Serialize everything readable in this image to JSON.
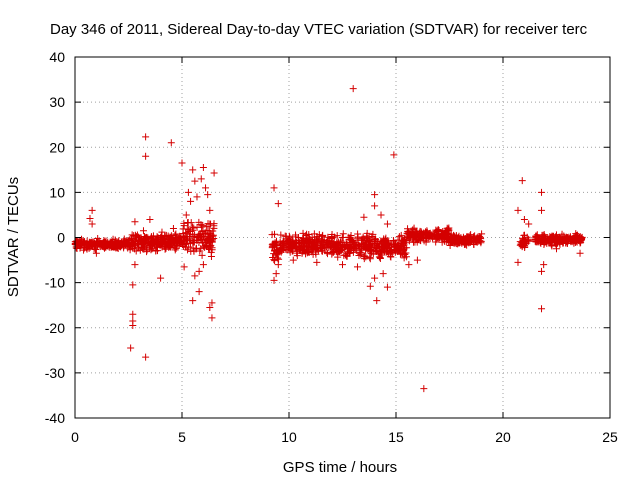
{
  "chart_data": {
    "type": "scatter",
    "title": "Day 346 of 2011, Sidereal Day-to-day VTEC variation (SDTVAR) for receiver terc",
    "xlabel": "GPS time / hours",
    "ylabel": "SDTVAR / TECUs",
    "xlim": [
      0,
      25
    ],
    "ylim": [
      -40,
      40
    ],
    "x_ticks": [
      "0",
      "5",
      "10",
      "15",
      "20",
      "25"
    ],
    "y_ticks": [
      "40",
      "30",
      "20",
      "10",
      "0",
      "-10",
      "-20",
      "-30",
      "-40"
    ],
    "x_tick_values": [
      0,
      5,
      10,
      15,
      20,
      25
    ],
    "y_tick_values": [
      40,
      30,
      20,
      10,
      0,
      -10,
      -20,
      -30,
      -40
    ],
    "grid": true,
    "marker": "+",
    "series_color": "#d40000",
    "series": [
      {
        "name": "SDTVAR",
        "dense_bands": [
          {
            "x_start": 0.0,
            "x_end": 2.6,
            "y_center": -1.5,
            "y_spread": 1.5
          },
          {
            "x_start": 2.6,
            "x_end": 5.0,
            "y_center": -1.0,
            "y_spread": 2.5
          },
          {
            "x_start": 5.0,
            "x_end": 6.5,
            "y_center": 0.0,
            "y_spread": 5.0
          },
          {
            "x_start": 9.2,
            "x_end": 9.6,
            "y_center": -3.0,
            "y_spread": 4.5
          },
          {
            "x_start": 9.6,
            "x_end": 12.0,
            "y_center": -1.5,
            "y_spread": 3.0
          },
          {
            "x_start": 12.0,
            "x_end": 15.5,
            "y_center": -2.0,
            "y_spread": 3.5
          },
          {
            "x_start": 15.5,
            "x_end": 17.5,
            "y_center": 0.5,
            "y_spread": 2.0
          },
          {
            "x_start": 17.5,
            "x_end": 19.0,
            "y_center": -0.5,
            "y_spread": 1.5
          },
          {
            "x_start": 20.8,
            "x_end": 21.2,
            "y_center": -1.0,
            "y_spread": 2.0
          },
          {
            "x_start": 21.5,
            "x_end": 23.7,
            "y_center": -0.5,
            "y_spread": 1.5
          }
        ],
        "outliers": [
          {
            "x": 13.0,
            "y": 33.0
          },
          {
            "x": 3.3,
            "y": 22.3
          },
          {
            "x": 4.5,
            "y": 21.0
          },
          {
            "x": 3.3,
            "y": 18.0
          },
          {
            "x": 14.9,
            "y": 18.3
          },
          {
            "x": 5.0,
            "y": 16.5
          },
          {
            "x": 5.5,
            "y": 15.0
          },
          {
            "x": 6.5,
            "y": 14.3
          },
          {
            "x": 20.9,
            "y": 12.6
          },
          {
            "x": 9.3,
            "y": 11.0
          },
          {
            "x": 21.8,
            "y": 10.0
          },
          {
            "x": 14.0,
            "y": 9.5
          },
          {
            "x": 9.5,
            "y": 7.5
          },
          {
            "x": 0.8,
            "y": 6.0
          },
          {
            "x": 21.8,
            "y": 6.0
          },
          {
            "x": 20.7,
            "y": 6.0
          },
          {
            "x": 3.5,
            "y": 4.0
          },
          {
            "x": 2.8,
            "y": 3.5
          },
          {
            "x": 0.7,
            "y": 4.2
          },
          {
            "x": 0.8,
            "y": 3.0
          },
          {
            "x": 20.7,
            "y": -5.5
          },
          {
            "x": 4.0,
            "y": -9.0
          },
          {
            "x": 14.0,
            "y": -9.0
          },
          {
            "x": 2.7,
            "y": -10.5
          },
          {
            "x": 13.8,
            "y": -10.8
          },
          {
            "x": 14.6,
            "y": -11.0
          },
          {
            "x": 5.8,
            "y": -12.0
          },
          {
            "x": 5.5,
            "y": -14.0
          },
          {
            "x": 14.1,
            "y": -14.0
          },
          {
            "x": 6.4,
            "y": -14.5
          },
          {
            "x": 6.3,
            "y": -15.5
          },
          {
            "x": 21.8,
            "y": -15.8
          },
          {
            "x": 2.7,
            "y": -17.0
          },
          {
            "x": 6.4,
            "y": -17.8
          },
          {
            "x": 2.7,
            "y": -18.5
          },
          {
            "x": 2.7,
            "y": -19.5
          },
          {
            "x": 2.6,
            "y": -24.5
          },
          {
            "x": 3.3,
            "y": -26.5
          },
          {
            "x": 16.3,
            "y": -33.5
          },
          {
            "x": 9.3,
            "y": -9.5
          },
          {
            "x": 9.4,
            "y": -8.0
          },
          {
            "x": 9.5,
            "y": -6.0
          },
          {
            "x": 6.0,
            "y": 15.5
          },
          {
            "x": 5.9,
            "y": 13.0
          },
          {
            "x": 6.1,
            "y": 11.0
          },
          {
            "x": 5.3,
            "y": 10.0
          },
          {
            "x": 5.6,
            "y": 12.5
          },
          {
            "x": 5.4,
            "y": 8.0
          },
          {
            "x": 5.7,
            "y": 9.0
          },
          {
            "x": 6.2,
            "y": 9.5
          },
          {
            "x": 5.2,
            "y": 5.0
          },
          {
            "x": 6.3,
            "y": 6.0
          },
          {
            "x": 5.8,
            "y": -7.5
          },
          {
            "x": 5.6,
            "y": -8.5
          },
          {
            "x": 5.1,
            "y": -6.5
          },
          {
            "x": 6.0,
            "y": -6.0
          },
          {
            "x": 14.3,
            "y": 5.0
          },
          {
            "x": 13.5,
            "y": 4.5
          },
          {
            "x": 14.0,
            "y": 7.0
          },
          {
            "x": 14.6,
            "y": 3.0
          },
          {
            "x": 13.2,
            "y": -6.5
          },
          {
            "x": 14.4,
            "y": -8.0
          },
          {
            "x": 15.6,
            "y": -6.0
          },
          {
            "x": 16.0,
            "y": -5.0
          },
          {
            "x": 12.5,
            "y": -6.0
          },
          {
            "x": 11.3,
            "y": -5.5
          },
          {
            "x": 10.2,
            "y": -5.0
          },
          {
            "x": 21.8,
            "y": -7.5
          },
          {
            "x": 21.9,
            "y": -6.0
          },
          {
            "x": 21.0,
            "y": 4.0
          },
          {
            "x": 21.2,
            "y": 3.0
          },
          {
            "x": 23.6,
            "y": -3.5
          },
          {
            "x": 22.5,
            "y": -2.5
          },
          {
            "x": 0.4,
            "y": -2.8
          },
          {
            "x": 1.0,
            "y": -3.5
          },
          {
            "x": 2.8,
            "y": -6.0
          },
          {
            "x": 3.2,
            "y": 1.5
          },
          {
            "x": 3.6,
            "y": -2.5
          },
          {
            "x": 4.6,
            "y": 2.0
          },
          {
            "x": 19.0,
            "y": 0.8
          }
        ]
      }
    ]
  }
}
